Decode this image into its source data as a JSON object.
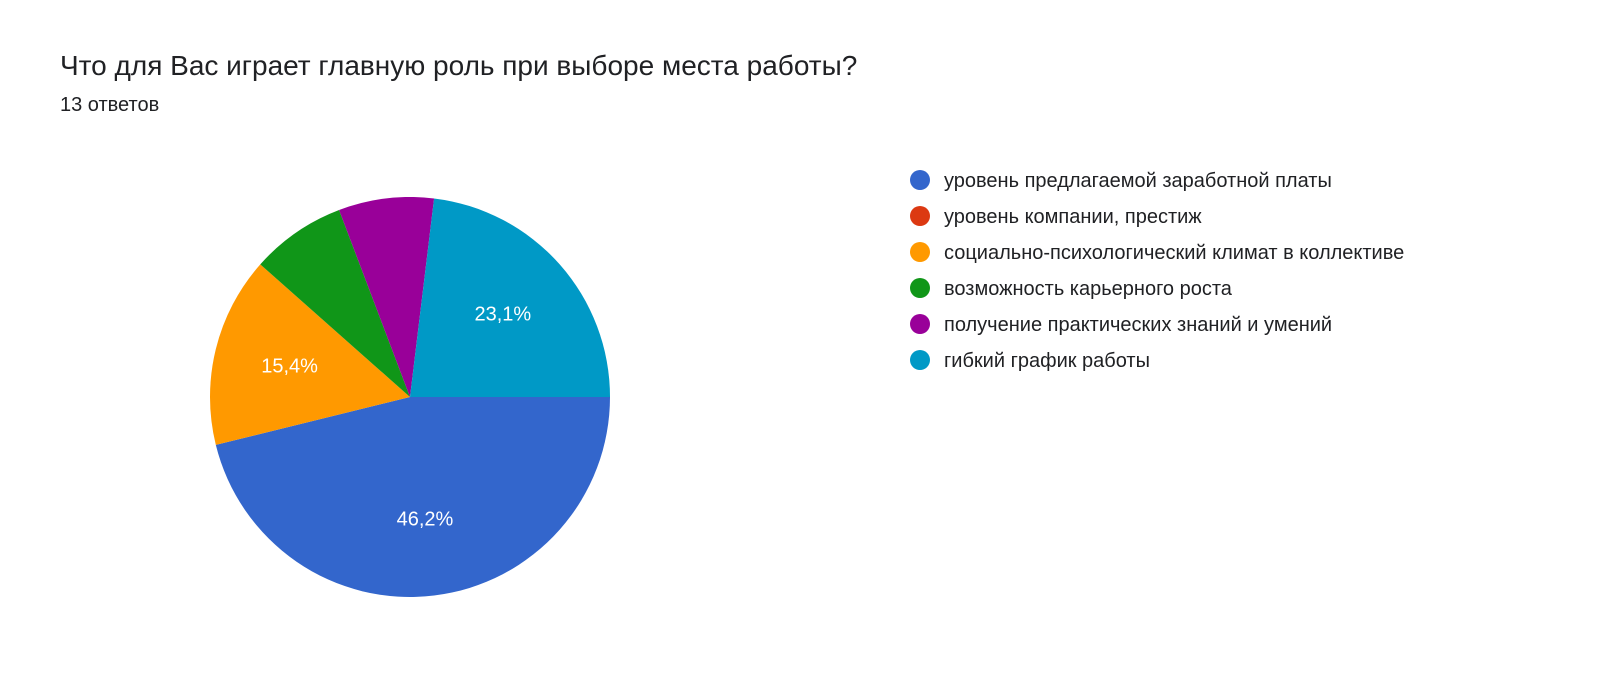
{
  "title": "Что для Вас играет главную роль при выборе места работы?",
  "subtitle": "13 ответов",
  "chart": {
    "type": "pie",
    "background_color": "#ffffff",
    "title_fontsize": 28,
    "subtitle_fontsize": 20,
    "label_fontsize": 20,
    "legend_fontsize": 20,
    "label_color": "#ffffff",
    "text_color": "#202124",
    "radius": 200,
    "slices": [
      {
        "label": "уровень предлагаемой заработной платы",
        "value": 46.2,
        "display": "46,2%",
        "color": "#3366cc",
        "show_label": true
      },
      {
        "label": "уровень компании, престиж",
        "value": 0,
        "display": "",
        "color": "#dc3912",
        "show_label": false
      },
      {
        "label": "социально-психологический климат в коллективе",
        "value": 15.4,
        "display": "15,4%",
        "color": "#ff9900",
        "show_label": true
      },
      {
        "label": "возможность карьерного роста",
        "value": 7.7,
        "display": "",
        "color": "#109618",
        "show_label": false
      },
      {
        "label": "получение практических знаний и умений",
        "value": 7.7,
        "display": "",
        "color": "#990099",
        "show_label": false
      },
      {
        "label": "гибкий график работы",
        "value": 23.1,
        "display": "23,1%",
        "color": "#0099c6",
        "show_label": true
      }
    ]
  }
}
